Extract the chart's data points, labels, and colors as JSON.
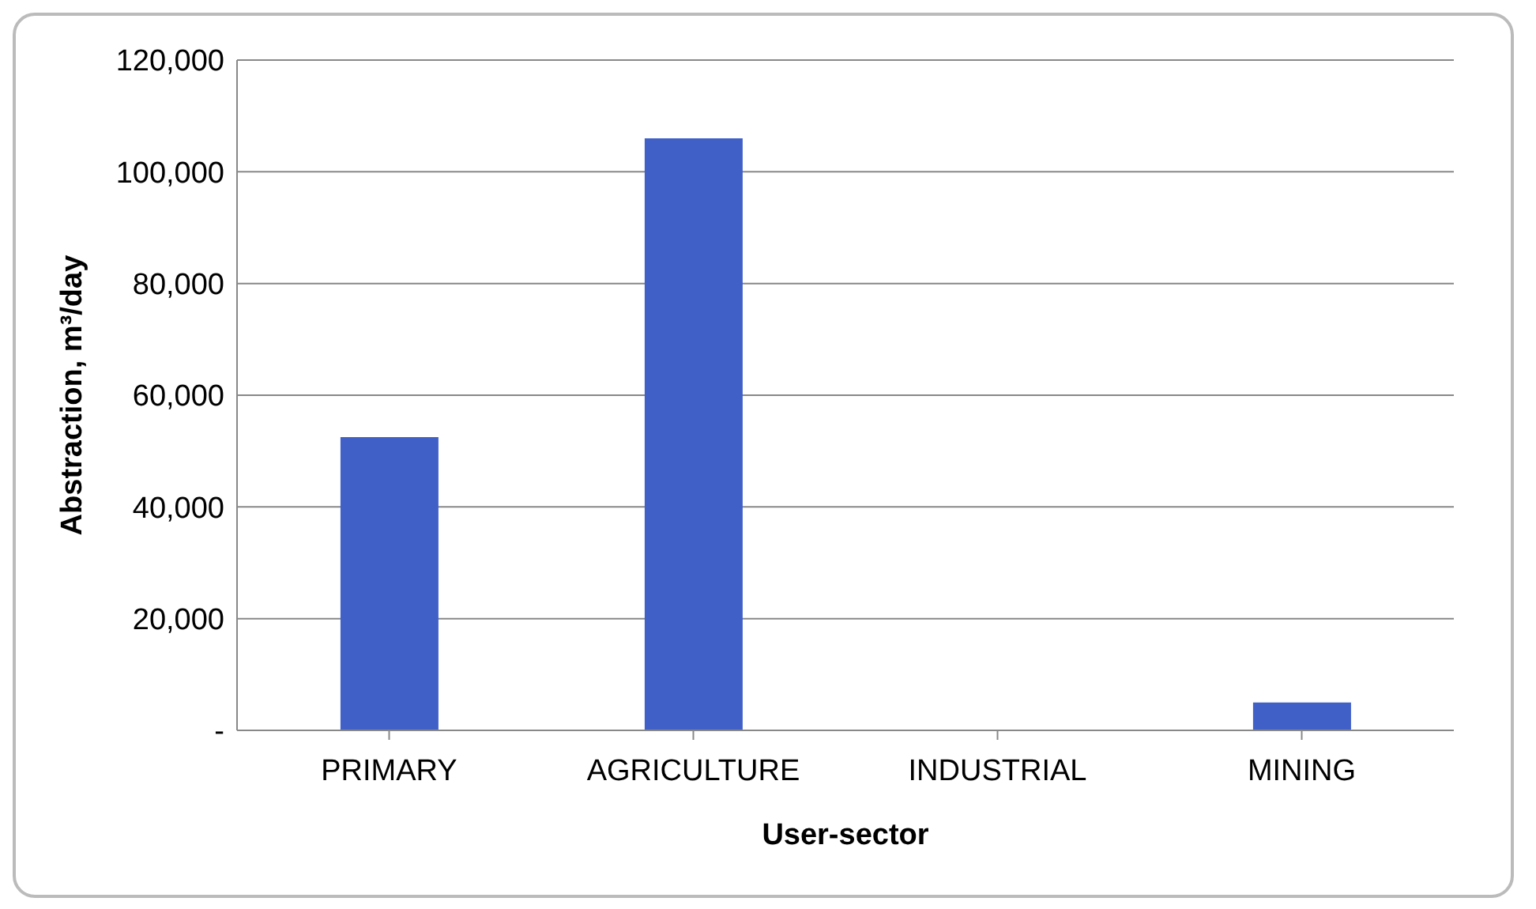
{
  "chart_data": {
    "type": "bar",
    "xlabel": "User-sector",
    "ylabel": "Abstraction, m³/day",
    "categories": [
      "PRIMARY",
      "AGRICULTURE",
      "INDUSTRIAL",
      "MINING"
    ],
    "values": [
      52500,
      106000,
      0,
      5000
    ],
    "color": "#4060c8",
    "ylim": [
      0,
      120000
    ],
    "yticks": [
      {
        "value": 0,
        "label": "-"
      },
      {
        "value": 20000,
        "label": "20,000"
      },
      {
        "value": 40000,
        "label": "40,000"
      },
      {
        "value": 60000,
        "label": "60,000"
      },
      {
        "value": 80000,
        "label": "80,000"
      },
      {
        "value": 100000,
        "label": "100,000"
      },
      {
        "value": 120000,
        "label": "120,000"
      }
    ],
    "grid": "y"
  }
}
